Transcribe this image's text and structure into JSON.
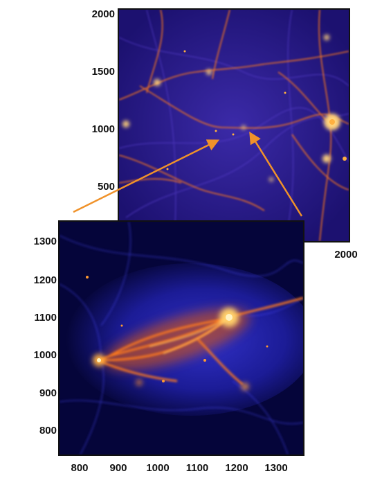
{
  "top_panel": {
    "y_ticks": [
      "2000",
      "1500",
      "1000",
      "500"
    ],
    "x_ticks": [
      "2000"
    ]
  },
  "bottom_panel": {
    "y_ticks": [
      "1300",
      "1200",
      "1100",
      "1000",
      "900",
      "800"
    ],
    "x_ticks": [
      "800",
      "900",
      "1000",
      "1100",
      "1200",
      "1300"
    ]
  },
  "colors": {
    "arrow": "#f0922a",
    "filament_bright": "#ffd27a",
    "filament_mid": "#ff7a1a",
    "background_top": "#1a0f6e",
    "background_bottom": "#05053a",
    "filament_blue": "#3a3aff"
  }
}
